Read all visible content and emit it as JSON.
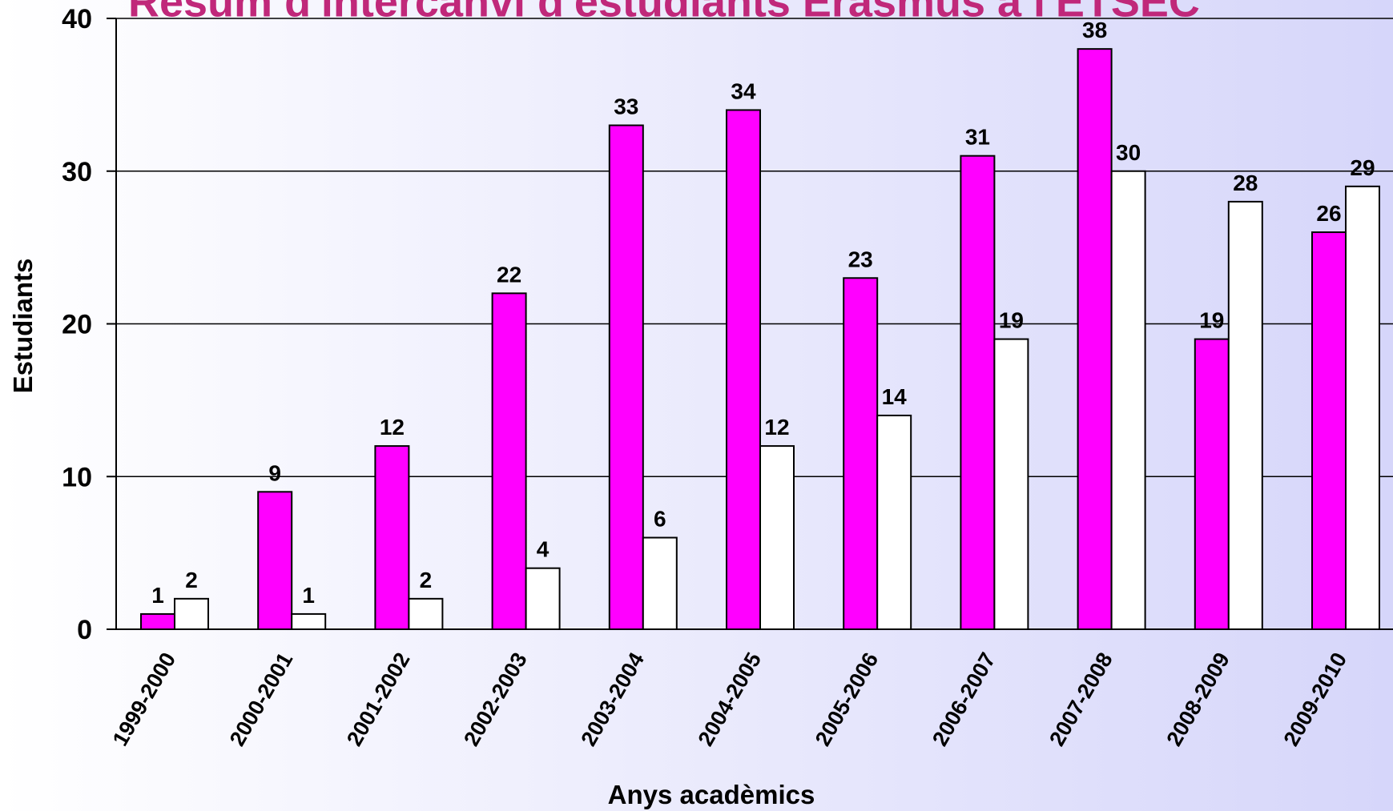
{
  "chart_data": {
    "type": "bar",
    "title": "Resum d'intercanvi d'estudiants Erasmus a l'ETSEC",
    "xlabel": "Anys acadèmics",
    "ylabel": "Estudiants",
    "ylim": [
      0,
      40
    ],
    "yticks": [
      0,
      10,
      20,
      30,
      40
    ],
    "grid": true,
    "categories": [
      "1999-2000",
      "2000-2001",
      "2001-2002",
      "2002-2003",
      "2003-2004",
      "2004-2005",
      "2005-2006",
      "2006-2007",
      "2007-2008",
      "2008-2009",
      "2009-2010"
    ],
    "series": [
      {
        "values": [
          1,
          9,
          12,
          22,
          33,
          34,
          23,
          31,
          38,
          19,
          26
        ],
        "color": "#ff00ff"
      },
      {
        "values": [
          2,
          1,
          2,
          4,
          6,
          12,
          14,
          19,
          30,
          28,
          29
        ],
        "color": "#ffffff"
      }
    ],
    "title_color": "#c0287a"
  }
}
